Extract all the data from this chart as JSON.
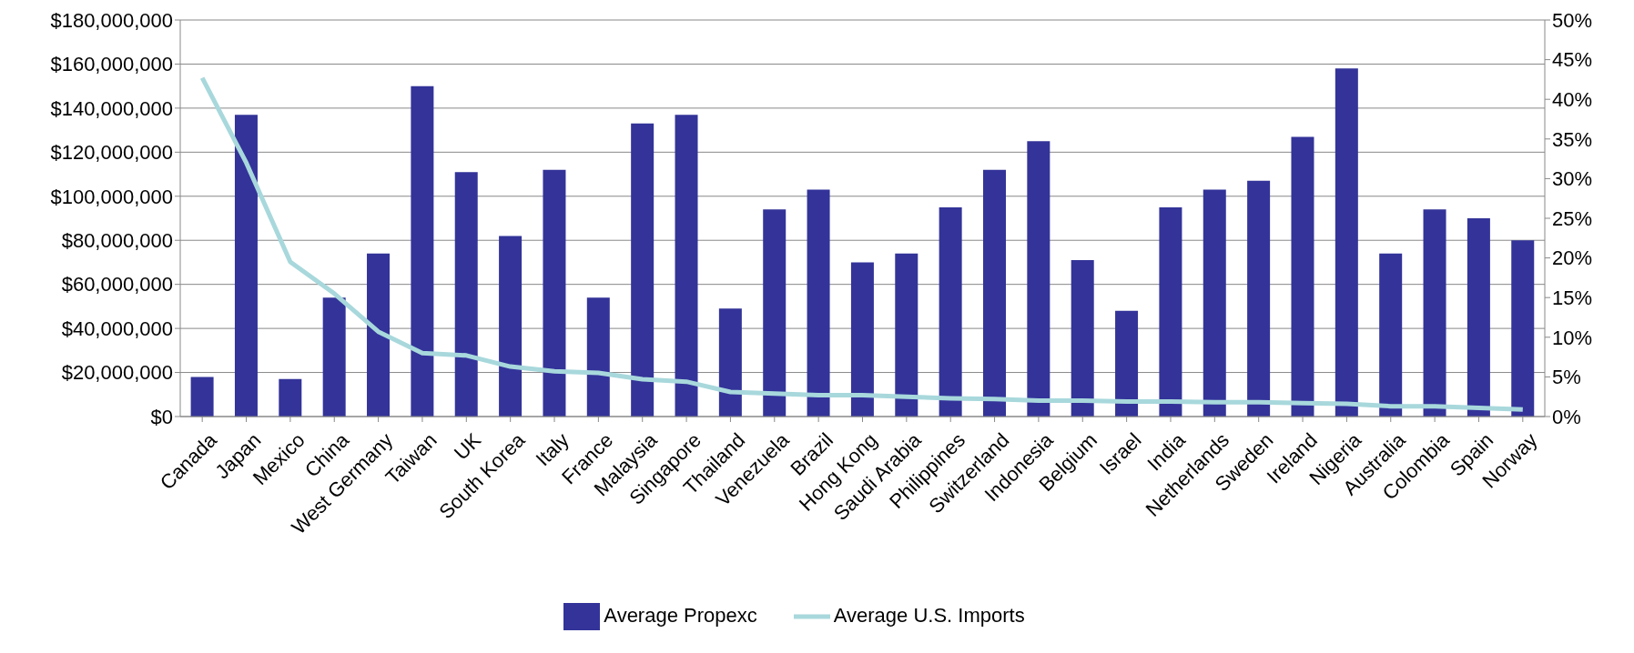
{
  "chart_data": {
    "type": "bar",
    "categories": [
      "Canada",
      "Japan",
      "Mexico",
      "China",
      "West Germany",
      "Taiwan",
      "UK",
      "South Korea",
      "Italy",
      "France",
      "Malaysia",
      "Singapore",
      "Thailand",
      "Venezuela",
      "Brazil",
      "Hong Kong",
      "Saudi Arabia",
      "Philippines",
      "Switzerland",
      "Indonesia",
      "Belgium",
      "Israel",
      "India",
      "Netherlands",
      "Sweden",
      "Ireland",
      "Nigeria",
      "Australia",
      "Colombia",
      "Spain",
      "Norway"
    ],
    "series": [
      {
        "name": "Average Propexc",
        "color": "#333399",
        "values": [
          18000000,
          137000000,
          17000000,
          54000000,
          74000000,
          150000000,
          111000000,
          82000000,
          112000000,
          54000000,
          133000000,
          137000000,
          49000000,
          94000000,
          103000000,
          70000000,
          74000000,
          95000000,
          112000000,
          125000000,
          71000000,
          48000000,
          95000000,
          103000000,
          107000000,
          127000000,
          158000000,
          74000000,
          94000000,
          90000000,
          80000000
        ]
      },
      {
        "name": "Average U.S. Imports",
        "type": "line",
        "axis": "y2",
        "color": "#a8d8dc",
        "values": [
          42.7,
          32,
          19.5,
          15.5,
          10.7,
          8,
          7.7,
          6.3,
          5.7,
          5.5,
          4.7,
          4.4,
          3.1,
          2.9,
          2.7,
          2.7,
          2.5,
          2.3,
          2.2,
          2,
          2,
          1.9,
          1.9,
          1.8,
          1.8,
          1.7,
          1.6,
          1.3,
          1.3,
          1.1,
          0.9
        ]
      }
    ],
    "ylim": [
      0,
      180000000
    ],
    "yticks": [
      {
        "value": 0,
        "label": "$0"
      },
      {
        "value": 20000000,
        "label": "$20,000,000"
      },
      {
        "value": 40000000,
        "label": "$40,000,000"
      },
      {
        "value": 60000000,
        "label": "$60,000,000"
      },
      {
        "value": 80000000,
        "label": "$80,000,000"
      },
      {
        "value": 100000000,
        "label": "$100,000,000"
      },
      {
        "value": 120000000,
        "label": "$120,000,000"
      },
      {
        "value": 140000000,
        "label": "$140,000,000"
      },
      {
        "value": 160000000,
        "label": "$160,000,000"
      },
      {
        "value": 180000000,
        "label": "$180,000,000"
      }
    ],
    "y2lim": [
      0,
      50
    ],
    "y2ticks": [
      {
        "value": 0,
        "label": "0%"
      },
      {
        "value": 5,
        "label": "5%"
      },
      {
        "value": 10,
        "label": "10%"
      },
      {
        "value": 15,
        "label": "15%"
      },
      {
        "value": 20,
        "label": "20%"
      },
      {
        "value": 25,
        "label": "25%"
      },
      {
        "value": 30,
        "label": "30%"
      },
      {
        "value": 35,
        "label": "35%"
      },
      {
        "value": 40,
        "label": "40%"
      },
      {
        "value": 45,
        "label": "45%"
      },
      {
        "value": 50,
        "label": "50%"
      }
    ],
    "grid": "y",
    "legend": "bottom",
    "marker": "none",
    "line_style": "solid"
  }
}
